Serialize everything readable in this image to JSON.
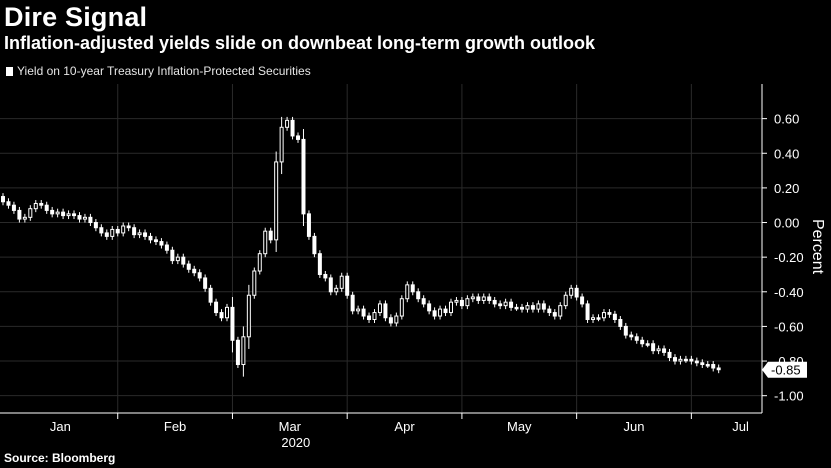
{
  "header": {
    "title": "Dire Signal",
    "subtitle": "Inflation-adjusted yields slide on downbeat long-term growth outlook"
  },
  "legend": {
    "label": "Yield on 10-year Treasury Inflation-Protected Securities"
  },
  "footer": {
    "source": "Source: Bloomberg"
  },
  "colors": {
    "background": "#000000",
    "candle": "#ffffff",
    "grid": "#2a2a2a"
  },
  "chart_data": {
    "type": "candlestick",
    "title": "Dire Signal",
    "subtitle": "Inflation-adjusted yields slide on downbeat long-term growth outlook",
    "ylabel": "Percent",
    "xlabel": "2020",
    "ylim": [
      -1.1,
      0.8
    ],
    "yticks": [
      0.6,
      0.4,
      0.2,
      0.0,
      -0.2,
      -0.4,
      -0.6,
      -0.8,
      -1.0
    ],
    "ytick_labels": [
      "0.60",
      "0.40",
      "0.20",
      "0.00",
      "-0.20",
      "-0.40",
      "-0.60",
      "-0.80",
      "-1.00"
    ],
    "months": [
      {
        "label": "Jan",
        "center": 10.5,
        "boundary": 0
      },
      {
        "label": "Feb",
        "center": 31.5,
        "boundary": 21
      },
      {
        "label": "Mar",
        "center": 52.5,
        "boundary": 42
      },
      {
        "label": "Apr",
        "center": 73.5,
        "boundary": 63
      },
      {
        "label": "May",
        "center": 94.5,
        "boundary": 84
      },
      {
        "label": "Jun",
        "center": 115.5,
        "boundary": 105
      },
      {
        "label": "Jul",
        "center": 135,
        "boundary": 126
      }
    ],
    "x_range": [
      0,
      136
    ],
    "last_value": -0.85,
    "last_value_label": "-0.85",
    "closes": [
      0.12,
      0.1,
      0.07,
      0.02,
      0.03,
      0.08,
      0.11,
      0.1,
      0.07,
      0.05,
      0.06,
      0.04,
      0.05,
      0.04,
      0.02,
      0.03,
      0.0,
      -0.03,
      -0.06,
      -0.08,
      -0.04,
      -0.06,
      -0.02,
      -0.03,
      -0.07,
      -0.06,
      -0.08,
      -0.1,
      -0.11,
      -0.13,
      -0.16,
      -0.22,
      -0.2,
      -0.24,
      -0.27,
      -0.29,
      -0.32,
      -0.38,
      -0.46,
      -0.52,
      -0.55,
      -0.49,
      -0.68,
      -0.82,
      -0.66,
      -0.42,
      -0.28,
      -0.18,
      -0.05,
      -0.1,
      0.35,
      0.55,
      0.59,
      0.5,
      0.48,
      0.05,
      -0.08,
      -0.18,
      -0.3,
      -0.32,
      -0.4,
      -0.38,
      -0.31,
      -0.42,
      -0.51,
      -0.5,
      -0.54,
      -0.56,
      -0.52,
      -0.47,
      -0.55,
      -0.58,
      -0.54,
      -0.44,
      -0.36,
      -0.4,
      -0.44,
      -0.47,
      -0.51,
      -0.54,
      -0.5,
      -0.52,
      -0.46,
      -0.45,
      -0.48,
      -0.44,
      -0.43,
      -0.45,
      -0.43,
      -0.45,
      -0.47,
      -0.48,
      -0.46,
      -0.49,
      -0.49,
      -0.5,
      -0.48,
      -0.5,
      -0.47,
      -0.5,
      -0.52,
      -0.54,
      -0.48,
      -0.42,
      -0.38,
      -0.43,
      -0.47,
      -0.56,
      -0.55,
      -0.55,
      -0.52,
      -0.53,
      -0.56,
      -0.6,
      -0.65,
      -0.66,
      -0.68,
      -0.7,
      -0.7,
      -0.74,
      -0.73,
      -0.75,
      -0.78,
      -0.8,
      -0.79,
      -0.79,
      -0.8,
      -0.81,
      -0.82,
      -0.82,
      -0.84,
      -0.85
    ]
  }
}
